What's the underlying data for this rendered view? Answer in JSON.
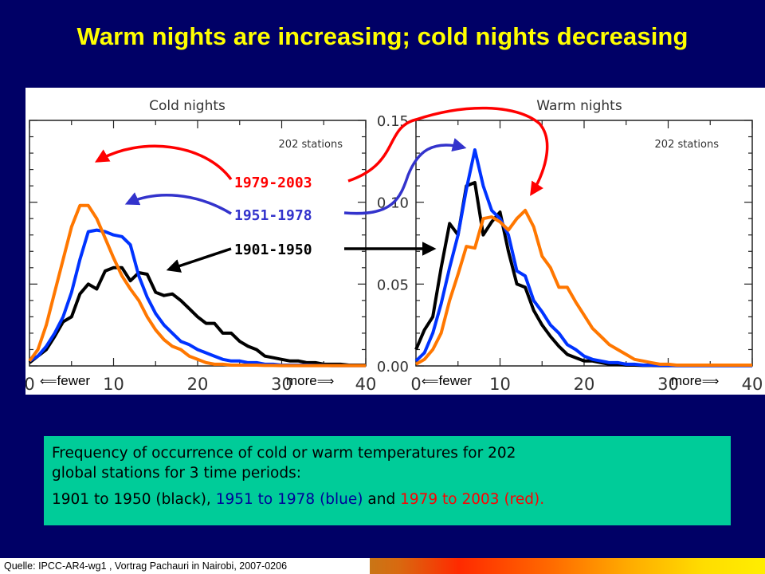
{
  "slide": {
    "title": "Warm nights are increasing; cold nights decreasing"
  },
  "chart_data": [
    {
      "type": "line",
      "title": "Cold nights",
      "annotation": "202 stations",
      "x": [
        0,
        1,
        2,
        3,
        4,
        5,
        6,
        7,
        8,
        9,
        10,
        11,
        12,
        13,
        14,
        15,
        16,
        17,
        18,
        19,
        20,
        21,
        22,
        23,
        24,
        25,
        26,
        27,
        28,
        29,
        30,
        31,
        32,
        33,
        34,
        35,
        36,
        37,
        38,
        39,
        40
      ],
      "xlim": [
        0,
        40
      ],
      "xticks": [
        "0",
        "10",
        "20",
        "30",
        "40"
      ],
      "xlabels": {
        "left": "fewer",
        "right": "more"
      },
      "ylim": [
        0,
        0.15
      ],
      "series": [
        {
          "name": "1901-1950",
          "color": "#000000",
          "values": [
            0.002,
            0.006,
            0.01,
            0.018,
            0.027,
            0.03,
            0.044,
            0.05,
            0.047,
            0.058,
            0.06,
            0.06,
            0.052,
            0.057,
            0.056,
            0.045,
            0.043,
            0.044,
            0.04,
            0.035,
            0.03,
            0.026,
            0.026,
            0.02,
            0.02,
            0.015,
            0.012,
            0.01,
            0.006,
            0.005,
            0.004,
            0.003,
            0.003,
            0.002,
            0.002,
            0.001,
            0.001,
            0.001,
            0.0005,
            0.0005,
            0.0005
          ]
        },
        {
          "name": "1951-1978",
          "color": "#0033ff",
          "values": [
            0.003,
            0.006,
            0.012,
            0.02,
            0.03,
            0.045,
            0.065,
            0.082,
            0.083,
            0.082,
            0.08,
            0.079,
            0.074,
            0.055,
            0.042,
            0.032,
            0.025,
            0.02,
            0.015,
            0.013,
            0.01,
            0.008,
            0.006,
            0.004,
            0.003,
            0.003,
            0.002,
            0.002,
            0.001,
            0.001,
            0.0005,
            0.0005,
            0.0005,
            0.0005,
            0.0003,
            0.0003,
            0.0002,
            0.0002,
            0.0002,
            0.0002,
            0.0002
          ]
        },
        {
          "name": "1979-2003",
          "color": "#ff7700",
          "values": [
            0.003,
            0.01,
            0.025,
            0.045,
            0.065,
            0.085,
            0.098,
            0.098,
            0.09,
            0.078,
            0.066,
            0.055,
            0.047,
            0.04,
            0.03,
            0.022,
            0.016,
            0.012,
            0.01,
            0.006,
            0.004,
            0.002,
            0.001,
            0.001,
            0.0005,
            0.0005,
            0.0005,
            0.0005,
            0.0003,
            0.0003,
            0.0002,
            0.0002,
            0.0002,
            0.0002,
            0.0002,
            0.0002,
            0.0002,
            0.0002,
            0.0002,
            0.0002,
            0.0002
          ]
        }
      ]
    },
    {
      "type": "line",
      "title": "Warm nights",
      "annotation": "202 stations",
      "x": [
        0,
        1,
        2,
        3,
        4,
        5,
        6,
        7,
        8,
        9,
        10,
        11,
        12,
        13,
        14,
        15,
        16,
        17,
        18,
        19,
        20,
        21,
        22,
        23,
        24,
        25,
        26,
        27,
        28,
        29,
        30,
        31,
        32,
        33,
        34,
        35,
        36,
        37,
        38,
        39,
        40
      ],
      "xlim": [
        0,
        40
      ],
      "xticks": [
        "0",
        "10",
        "20",
        "30",
        "40"
      ],
      "xlabels": {
        "left": "fewer",
        "right": "more"
      },
      "ylim": [
        0,
        0.15
      ],
      "yticks": [
        "0.00",
        "0.05",
        "0.10",
        "0.15"
      ],
      "series": [
        {
          "name": "1901-1950",
          "color": "#000000",
          "values": [
            0.01,
            0.022,
            0.03,
            0.06,
            0.087,
            0.08,
            0.11,
            0.112,
            0.08,
            0.088,
            0.094,
            0.07,
            0.05,
            0.048,
            0.034,
            0.025,
            0.018,
            0.012,
            0.007,
            0.005,
            0.003,
            0.003,
            0.002,
            0.001,
            0.001,
            0.0005,
            0.0005,
            0.0003,
            0.0003,
            0.0002,
            0.0002,
            0.0002,
            0.0002,
            0.0002,
            0.0002,
            0.0002,
            0.0002,
            0.0002,
            0.0002,
            0.0002,
            0.0002
          ]
        },
        {
          "name": "1951-1978",
          "color": "#0033ff",
          "values": [
            0.003,
            0.008,
            0.02,
            0.038,
            0.06,
            0.08,
            0.108,
            0.132,
            0.11,
            0.095,
            0.09,
            0.08,
            0.058,
            0.055,
            0.04,
            0.033,
            0.025,
            0.02,
            0.013,
            0.01,
            0.006,
            0.004,
            0.003,
            0.002,
            0.002,
            0.001,
            0.001,
            0.0005,
            0.0005,
            0.0003,
            0.0003,
            0.0002,
            0.0002,
            0.0002,
            0.0002,
            0.0002,
            0.0002,
            0.0002,
            0.0002,
            0.0002,
            0.0002
          ]
        },
        {
          "name": "1979-2003",
          "color": "#ff7700",
          "values": [
            0.001,
            0.004,
            0.01,
            0.02,
            0.04,
            0.056,
            0.073,
            0.072,
            0.09,
            0.091,
            0.088,
            0.083,
            0.09,
            0.095,
            0.085,
            0.067,
            0.06,
            0.048,
            0.048,
            0.039,
            0.031,
            0.023,
            0.018,
            0.013,
            0.01,
            0.007,
            0.004,
            0.003,
            0.002,
            0.001,
            0.001,
            0.0005,
            0.0005,
            0.0005,
            0.0005,
            0.0005,
            0.0005,
            0.0005,
            0.0005,
            0.0005,
            0.0005
          ]
        }
      ]
    }
  ],
  "legend": {
    "items": [
      {
        "label": "1979-2003",
        "color": "#ff0000"
      },
      {
        "label": "1951-1978",
        "color": "#3333cc"
      },
      {
        "label": "1901-1950",
        "color": "#000000"
      }
    ]
  },
  "caption": {
    "line1": "Frequency of occurrence of cold or warm temperatures for 202",
    "line2": "global stations for 3 time periods:",
    "line3_a": "1901 to 1950 (black), ",
    "line3_b": "1951 to 1978 (blue)",
    "line3_c": " and ",
    "line3_d": "1979 to 2003 (red)",
    "line3_e": "."
  },
  "source": "Quelle:  IPCC-AR4-wg1 ,  Vortrag Pachauri  in Nairobi, 2007-0206"
}
